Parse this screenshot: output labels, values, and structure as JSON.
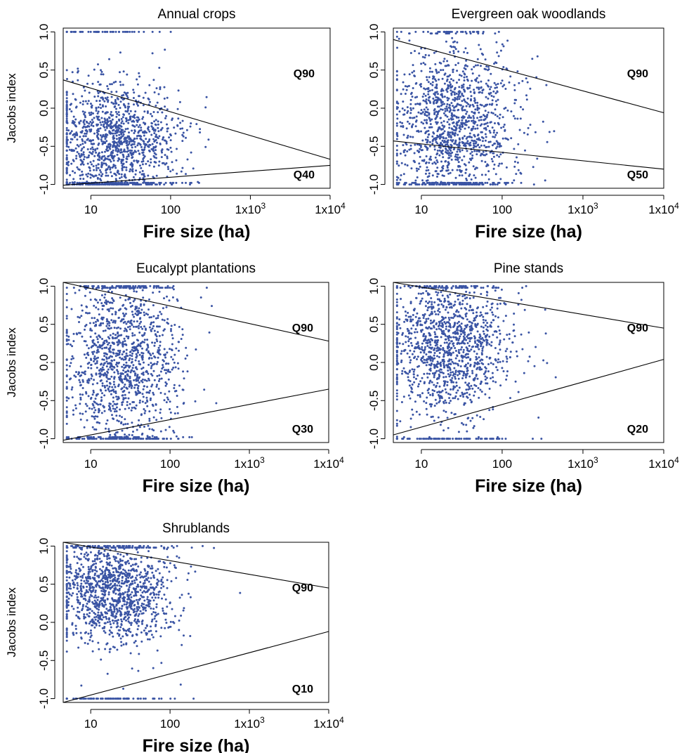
{
  "chart_data": [
    {
      "type": "scatter",
      "title": "Annual crops",
      "xlabel": "Fire size (ha)",
      "ylabel": "Jacobs index",
      "x_scale": "log",
      "xlim": [
        4.5,
        10000
      ],
      "ylim": [
        -1.05,
        1.05
      ],
      "x_ticks": [
        "10",
        "100",
        "1x10^3",
        "1x10^4"
      ],
      "y_ticks": [
        "-1.0",
        "-0.5",
        "0.0",
        "0.5",
        "1.0"
      ],
      "quantile_lines": [
        {
          "label": "Q90",
          "x": [
            4.5,
            10000
          ],
          "y": [
            0.37,
            -0.67
          ]
        },
        {
          "label": "Q40",
          "x": [
            4.5,
            10000
          ],
          "y": [
            -1.01,
            -0.75
          ]
        }
      ],
      "point_density": {
        "center_x": 20,
        "center_y": -0.45,
        "spread_y": 0.4
      },
      "color": "#3a54a4"
    },
    {
      "type": "scatter",
      "title": "Evergreen oak woodlands",
      "xlabel": "Fire size (ha)",
      "ylabel": "",
      "x_scale": "log",
      "xlim": [
        4.5,
        10000
      ],
      "ylim": [
        -1.05,
        1.05
      ],
      "x_ticks": [
        "10",
        "100",
        "1x10^3",
        "1x10^4"
      ],
      "y_ticks": [
        "-1.0",
        "-0.5",
        "0.0",
        "0.5",
        "1.0"
      ],
      "quantile_lines": [
        {
          "label": "Q90",
          "x": [
            4.5,
            10000
          ],
          "y": [
            0.9,
            -0.06
          ]
        },
        {
          "label": "Q50",
          "x": [
            4.5,
            10000
          ],
          "y": [
            -0.43,
            -0.8
          ]
        }
      ],
      "point_density": {
        "center_x": 25,
        "center_y": -0.2,
        "spread_y": 0.5
      },
      "color": "#3a54a4"
    },
    {
      "type": "scatter",
      "title": "Eucalypt plantations",
      "xlabel": "Fire size (ha)",
      "ylabel": "Jacobs index",
      "x_scale": "log",
      "xlim": [
        4.5,
        10000
      ],
      "ylim": [
        -1.05,
        1.05
      ],
      "x_ticks": [
        "10",
        "100",
        "1x10^3",
        "1x10^4"
      ],
      "y_ticks": [
        "-1.0",
        "-0.5",
        "0.0",
        "0.5",
        "1.0"
      ],
      "quantile_lines": [
        {
          "label": "Q90",
          "x": [
            4.5,
            10000
          ],
          "y": [
            1.05,
            0.28
          ]
        },
        {
          "label": "Q30",
          "x": [
            4.5,
            10000
          ],
          "y": [
            -1.02,
            -0.35
          ]
        }
      ],
      "point_density": {
        "center_x": 25,
        "center_y": 0.0,
        "spread_y": 0.55
      },
      "color": "#3a54a4"
    },
    {
      "type": "scatter",
      "title": "Pine stands",
      "xlabel": "Fire size (ha)",
      "ylabel": "",
      "x_scale": "log",
      "xlim": [
        4.5,
        10000
      ],
      "ylim": [
        -1.05,
        1.05
      ],
      "x_ticks": [
        "10",
        "100",
        "1x10^3",
        "1x10^4"
      ],
      "y_ticks": [
        "-1.0",
        "-0.5",
        "0.0",
        "0.5",
        "1.0"
      ],
      "quantile_lines": [
        {
          "label": "Q90",
          "x": [
            4.5,
            10000
          ],
          "y": [
            1.05,
            0.45
          ]
        },
        {
          "label": "Q20",
          "x": [
            4.5,
            10000
          ],
          "y": [
            -0.95,
            0.04
          ]
        }
      ],
      "point_density": {
        "center_x": 22,
        "center_y": 0.2,
        "spread_y": 0.45
      },
      "color": "#3a54a4"
    },
    {
      "type": "scatter",
      "title": "Shrublands",
      "xlabel": "Fire size (ha)",
      "ylabel": "Jacobs index",
      "x_scale": "log",
      "xlim": [
        4.5,
        10000
      ],
      "ylim": [
        -1.05,
        1.05
      ],
      "x_ticks": [
        "10",
        "100",
        "1x10^3",
        "1x10^4"
      ],
      "y_ticks": [
        "-1.0",
        "-0.5",
        "0.0",
        "0.5",
        "1.0"
      ],
      "quantile_lines": [
        {
          "label": "Q90",
          "x": [
            4.5,
            10000
          ],
          "y": [
            1.05,
            0.45
          ]
        },
        {
          "label": "Q10",
          "x": [
            4.5,
            10000
          ],
          "y": [
            -1.05,
            -0.12
          ]
        }
      ],
      "point_density": {
        "center_x": 20,
        "center_y": 0.4,
        "spread_y": 0.35
      },
      "color": "#3a54a4"
    }
  ]
}
